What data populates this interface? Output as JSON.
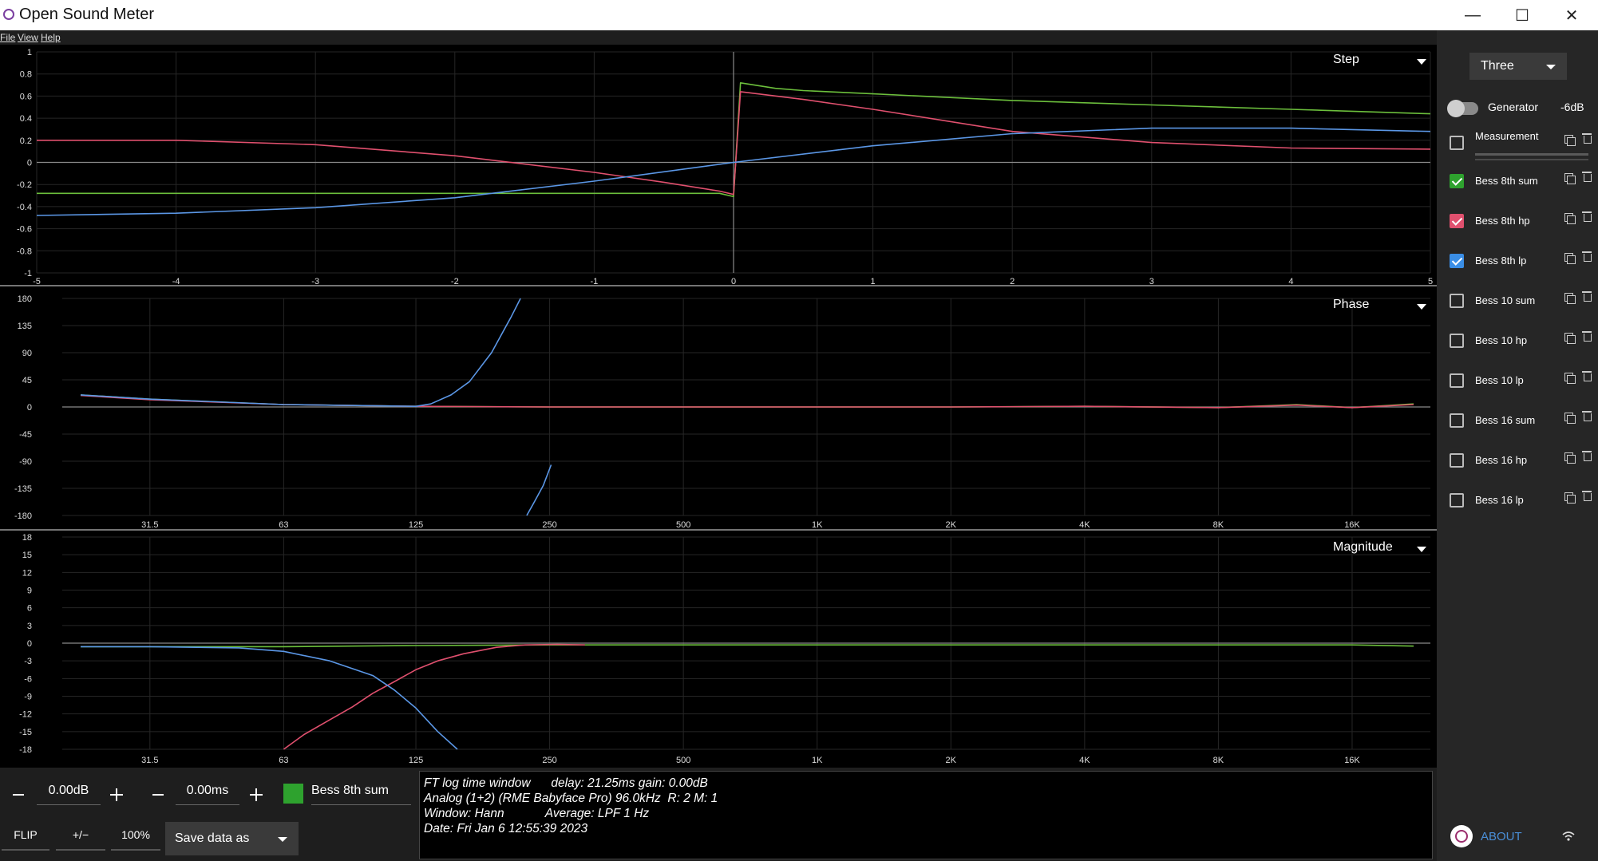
{
  "window": {
    "title": "Open Sound Meter",
    "minimize_glyph": "—",
    "maximize_glyph": "☐",
    "close_glyph": "✕"
  },
  "menu": {
    "items": [
      "File",
      "View",
      "Help"
    ]
  },
  "panels": {
    "step": {
      "title": "Step"
    },
    "phase": {
      "title": "Phase"
    },
    "magnitude": {
      "title": "Magnitude"
    }
  },
  "chart_data": [
    {
      "type": "line",
      "title": "Step",
      "xlabel": "",
      "ylabel": "",
      "x_ticks": [
        "-5",
        "-4",
        "-3",
        "-2",
        "-1",
        "0",
        "1",
        "2",
        "3",
        "4",
        "5"
      ],
      "y_ticks": [
        "1",
        "0.8",
        "0.6",
        "0.4",
        "0.2",
        "0",
        "-0.2",
        "-0.4",
        "-0.6",
        "-0.8",
        "-1"
      ],
      "xlim": [
        -5,
        5
      ],
      "ylim": [
        -1,
        1
      ],
      "grid": true,
      "series": [
        {
          "name": "Bess 8th sum",
          "color": "#6cbf3c",
          "x": [
            -5,
            -4,
            -3,
            -2,
            -1,
            -0.1,
            0,
            0.05,
            0.3,
            0.5,
            1,
            2,
            3,
            4,
            5
          ],
          "y": [
            -0.28,
            -0.28,
            -0.28,
            -0.28,
            -0.28,
            -0.28,
            -0.31,
            0.72,
            0.67,
            0.65,
            0.62,
            0.56,
            0.52,
            0.48,
            0.44
          ]
        },
        {
          "name": "Bess 8th hp",
          "color": "#e0506e",
          "x": [
            -5,
            -4,
            -3,
            -2,
            -1,
            -0.5,
            -0.1,
            0,
            0.05,
            0.5,
            1,
            2,
            3,
            4,
            5
          ],
          "y": [
            0.2,
            0.2,
            0.16,
            0.06,
            -0.09,
            -0.18,
            -0.26,
            -0.29,
            0.64,
            0.57,
            0.48,
            0.28,
            0.18,
            0.13,
            0.12
          ]
        },
        {
          "name": "Bess 8th lp",
          "color": "#5b97e6",
          "x": [
            -5,
            -4,
            -3,
            -2,
            -1,
            0,
            1,
            2,
            3,
            4,
            5
          ],
          "y": [
            -0.48,
            -0.46,
            -0.41,
            -0.32,
            -0.17,
            0,
            0.15,
            0.26,
            0.31,
            0.31,
            0.28
          ]
        }
      ]
    },
    {
      "type": "line",
      "title": "Phase",
      "xlabel": "",
      "ylabel": "",
      "x_ticks": [
        "31.5",
        "63",
        "125",
        "250",
        "500",
        "1K",
        "2K",
        "4K",
        "8K",
        "16K"
      ],
      "y_ticks": [
        "180",
        "135",
        "90",
        "45",
        "0",
        "-45",
        "-90",
        "-135",
        "-180"
      ],
      "xlim": [
        20,
        24000
      ],
      "ylim": [
        -180,
        180
      ],
      "x_scale": "log",
      "grid": true,
      "series": [
        {
          "name": "Bess 8th sum",
          "color": "#6cbf3c",
          "x": [
            22,
            31.5,
            63,
            125,
            250,
            500,
            1000,
            2000,
            4000,
            8000,
            12000,
            16000,
            22000
          ],
          "y": [
            20,
            13,
            4,
            1,
            0,
            0,
            0,
            0,
            1,
            -1,
            4,
            -1,
            5
          ]
        },
        {
          "name": "Bess 8th hp",
          "color": "#e0506e",
          "x": [
            22,
            31.5,
            63,
            125,
            250,
            500,
            1000,
            2000,
            4000,
            8000,
            12000,
            16000,
            22000
          ],
          "y": [
            19,
            12,
            4,
            1,
            0,
            0,
            0,
            0,
            1,
            -1,
            3,
            -1,
            4
          ]
        },
        {
          "name": "Bess 8th lp",
          "color": "#5b97e6",
          "x": [
            22,
            31.5,
            63,
            125,
            135,
            150,
            165,
            185,
            205,
            215,
            222,
            230,
            242,
            252
          ],
          "y": [
            20,
            13,
            4,
            1,
            5,
            20,
            42,
            90,
            150,
            180,
            -180,
            -160,
            -130,
            -96
          ]
        }
      ]
    },
    {
      "type": "line",
      "title": "Magnitude",
      "xlabel": "",
      "ylabel": "",
      "x_ticks": [
        "31.5",
        "63",
        "125",
        "250",
        "500",
        "1K",
        "2K",
        "4K",
        "8K",
        "16K"
      ],
      "y_ticks": [
        "18",
        "15",
        "12",
        "9",
        "6",
        "3",
        "0",
        "-3",
        "-6",
        "-9",
        "-12",
        "-15",
        "-18"
      ],
      "xlim": [
        20,
        24000
      ],
      "ylim": [
        -18,
        18
      ],
      "x_scale": "log",
      "grid": true,
      "series": [
        {
          "name": "Bess 8th sum",
          "color": "#6cbf3c",
          "x": [
            22,
            31.5,
            63,
            125,
            250,
            500,
            1000,
            2000,
            4000,
            8000,
            16000,
            22000
          ],
          "y": [
            -0.6,
            -0.6,
            -0.6,
            -0.4,
            -0.3,
            -0.3,
            -0.3,
            -0.3,
            -0.3,
            -0.3,
            -0.3,
            -0.5
          ]
        },
        {
          "name": "Bess 8th hp",
          "color": "#e0506e",
          "x": [
            63,
            70,
            80,
            90,
            100,
            112,
            125,
            140,
            160,
            190,
            220,
            260,
            300
          ],
          "y": [
            -18,
            -15.5,
            -13,
            -10.8,
            -8.5,
            -6.5,
            -4.5,
            -3,
            -1.8,
            -0.7,
            -0.3,
            -0.2,
            -0.3
          ]
        },
        {
          "name": "Bess 8th lp",
          "color": "#5b97e6",
          "x": [
            22,
            31.5,
            50,
            63,
            80,
            100,
            112,
            125,
            140,
            155
          ],
          "y": [
            -0.6,
            -0.6,
            -0.8,
            -1.4,
            -3,
            -5.5,
            -8,
            -11,
            -15,
            -18
          ]
        }
      ]
    }
  ],
  "sidebar": {
    "preset": "Three",
    "generator": {
      "label": "Generator",
      "level": "-6dB"
    },
    "measurement": "Measurement",
    "sources": [
      {
        "name": "Bess 8th sum",
        "checked": true,
        "color": "#2ea22e"
      },
      {
        "name": "Bess 8th hp",
        "checked": true,
        "color": "#e0506e"
      },
      {
        "name": "Bess 8th lp",
        "checked": true,
        "color": "#3a8ee6"
      },
      {
        "name": "Bess 10 sum",
        "checked": false
      },
      {
        "name": "Bess 10 hp",
        "checked": false
      },
      {
        "name": "Bess 10 lp",
        "checked": false
      },
      {
        "name": "Bess 16 sum",
        "checked": false
      },
      {
        "name": "Bess 16 hp",
        "checked": false
      },
      {
        "name": "Bess 16 lp",
        "checked": false
      }
    ],
    "about": "ABOUT"
  },
  "bottom": {
    "gain": "0.00dB",
    "delay": "0.00ms",
    "selected_source": "Bess 8th sum",
    "selected_color": "#2ea22e",
    "flip": "FLIP",
    "polarity": "+/−",
    "scale": "100%",
    "save": "Save data as",
    "info": [
      "FT log time window      delay: 21.25ms gain: 0.00dB",
      "Analog (1+2) (RME Babyface Pro) 96.0kHz  R: 2 M: 1",
      "Window: Hann            Average: LPF 1 Hz",
      "Date: Fri Jan 6 12:55:39 2023"
    ]
  }
}
